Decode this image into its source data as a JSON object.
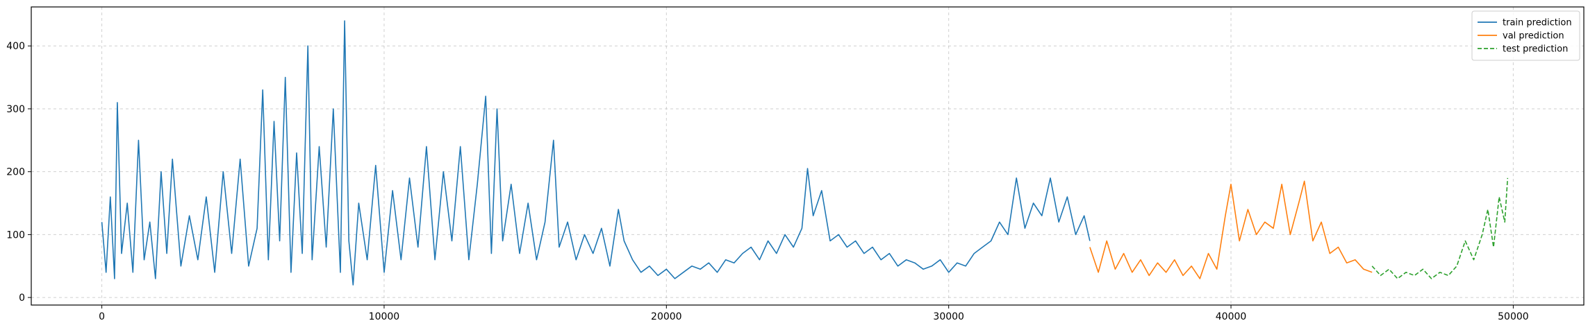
{
  "chart_data": {
    "type": "line",
    "title": "",
    "xlabel": "",
    "ylabel": "",
    "xlim": [
      -2500,
      52500
    ],
    "ylim": [
      -12,
      462
    ],
    "xticks": [
      0,
      10000,
      20000,
      30000,
      40000,
      50000
    ],
    "yticks": [
      0,
      100,
      200,
      300,
      400
    ],
    "grid": true,
    "legend_position": "top-right",
    "series": [
      {
        "name": "train prediction",
        "color": "#1f77b4",
        "dash": "solid",
        "x": [
          0,
          150,
          300,
          450,
          550,
          700,
          900,
          1100,
          1300,
          1500,
          1700,
          1900,
          2100,
          2300,
          2500,
          2800,
          3100,
          3400,
          3700,
          4000,
          4300,
          4600,
          4900,
          5200,
          5500,
          5700,
          5900,
          6100,
          6300,
          6500,
          6700,
          6900,
          7100,
          7300,
          7450,
          7700,
          7950,
          8200,
          8450,
          8600,
          8750,
          8900,
          9100,
          9400,
          9700,
          10000,
          10300,
          10600,
          10900,
          11200,
          11500,
          11800,
          12100,
          12400,
          12700,
          13000,
          13300,
          13600,
          13800,
          14000,
          14200,
          14500,
          14800,
          15100,
          15400,
          15700,
          16000,
          16200,
          16500,
          16800,
          17100,
          17400,
          17700,
          18000,
          18300,
          18500,
          18800,
          19100,
          19400,
          19700,
          20000,
          20300,
          20600,
          20900,
          21200,
          21500,
          21800,
          22100,
          22400,
          22700,
          23000,
          23300,
          23600,
          23900,
          24200,
          24500,
          24800,
          25000,
          25200,
          25500,
          25800,
          26100,
          26400,
          26700,
          27000,
          27300,
          27600,
          27900,
          28200,
          28500,
          28800,
          29100,
          29400,
          29700,
          30000,
          30300,
          30600,
          30900,
          31200,
          31500,
          31800,
          32100,
          32400,
          32700,
          33000,
          33300,
          33600,
          33900,
          34200,
          34500,
          34800,
          35000
        ],
        "values": [
          120,
          40,
          160,
          30,
          310,
          70,
          150,
          40,
          250,
          60,
          120,
          30,
          200,
          70,
          220,
          50,
          130,
          60,
          160,
          40,
          200,
          70,
          220,
          50,
          110,
          330,
          60,
          280,
          90,
          350,
          40,
          230,
          70,
          400,
          60,
          240,
          80,
          300,
          40,
          440,
          90,
          20,
          150,
          60,
          210,
          40,
          170,
          60,
          190,
          80,
          240,
          60,
          200,
          90,
          240,
          60,
          180,
          320,
          70,
          300,
          90,
          180,
          70,
          150,
          60,
          120,
          250,
          80,
          120,
          60,
          100,
          70,
          110,
          50,
          140,
          90,
          60,
          40,
          50,
          35,
          45,
          30,
          40,
          50,
          45,
          55,
          40,
          60,
          55,
          70,
          80,
          60,
          90,
          70,
          100,
          80,
          110,
          205,
          130,
          170,
          90,
          100,
          80,
          90,
          70,
          80,
          60,
          70,
          50,
          60,
          55,
          45,
          50,
          60,
          40,
          55,
          50,
          70,
          80,
          90,
          120,
          100,
          190,
          110,
          150,
          130,
          190,
          120,
          160,
          100,
          130,
          90
        ]
      },
      {
        "name": "val prediction",
        "color": "#ff7f0e",
        "dash": "solid",
        "x": [
          35000,
          35300,
          35600,
          35900,
          36200,
          36500,
          36800,
          37100,
          37400,
          37700,
          38000,
          38300,
          38600,
          38900,
          39200,
          39500,
          39800,
          40000,
          40300,
          40600,
          40900,
          41200,
          41500,
          41800,
          42100,
          42400,
          42600,
          42900,
          43200,
          43500,
          43800,
          44100,
          44400,
          44700,
          45000
        ],
        "values": [
          80,
          40,
          90,
          45,
          70,
          40,
          60,
          35,
          55,
          40,
          60,
          35,
          50,
          30,
          70,
          45,
          130,
          180,
          90,
          140,
          100,
          120,
          110,
          180,
          100,
          150,
          185,
          90,
          120,
          70,
          80,
          55,
          60,
          45,
          40
        ]
      },
      {
        "name": "test prediction",
        "color": "#2ca02c",
        "dash": "dashed",
        "x": [
          45000,
          45300,
          45600,
          45900,
          46200,
          46500,
          46800,
          47100,
          47400,
          47700,
          48000,
          48300,
          48600,
          48900,
          49100,
          49300,
          49500,
          49700,
          49800
        ],
        "values": [
          50,
          35,
          45,
          30,
          40,
          35,
          45,
          30,
          40,
          35,
          50,
          90,
          60,
          100,
          140,
          80,
          160,
          120,
          190
        ]
      }
    ]
  }
}
